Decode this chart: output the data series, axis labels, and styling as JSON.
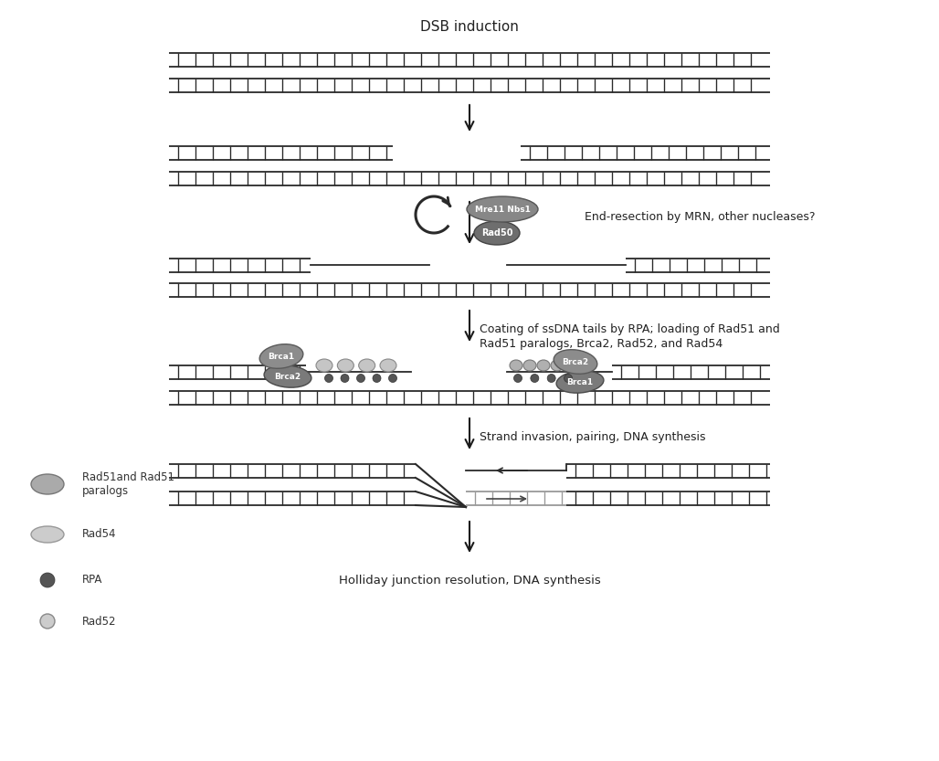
{
  "title": "DSB induction",
  "bg_color": "#ffffff",
  "dna_color": "#2a2a2a",
  "arrow_color": "#1a1a1a",
  "labels": {
    "dsb": "DSB induction",
    "end_resection": "End-resection by MRN, other nucleases?",
    "coating_line1": "Coating of ssDNA tails by RPA; loading of Rad51 and",
    "coating_line2": "Rad51 paralogs, Brca2, Rad52, and Rad54",
    "strand_invasion": "Strand invasion, pairing, DNA synthesis",
    "holliday": "Holliday junction resolution, DNA synthesis",
    "mrn1": "Mre11 Nbs1",
    "mrn2": "Rad50",
    "brca1_L": "Brca1",
    "brca2_L": "Brca2",
    "brca2_R": "Brca2",
    "brca1_R": "Brca1",
    "legend_rad51": "Rad51and Rad51\nparalogs",
    "legend_rad54": "Rad54",
    "legend_rpa": "RPA",
    "legend_rad52": "Rad52"
  },
  "fig_w": 10.28,
  "fig_h": 8.33,
  "dpi": 100
}
